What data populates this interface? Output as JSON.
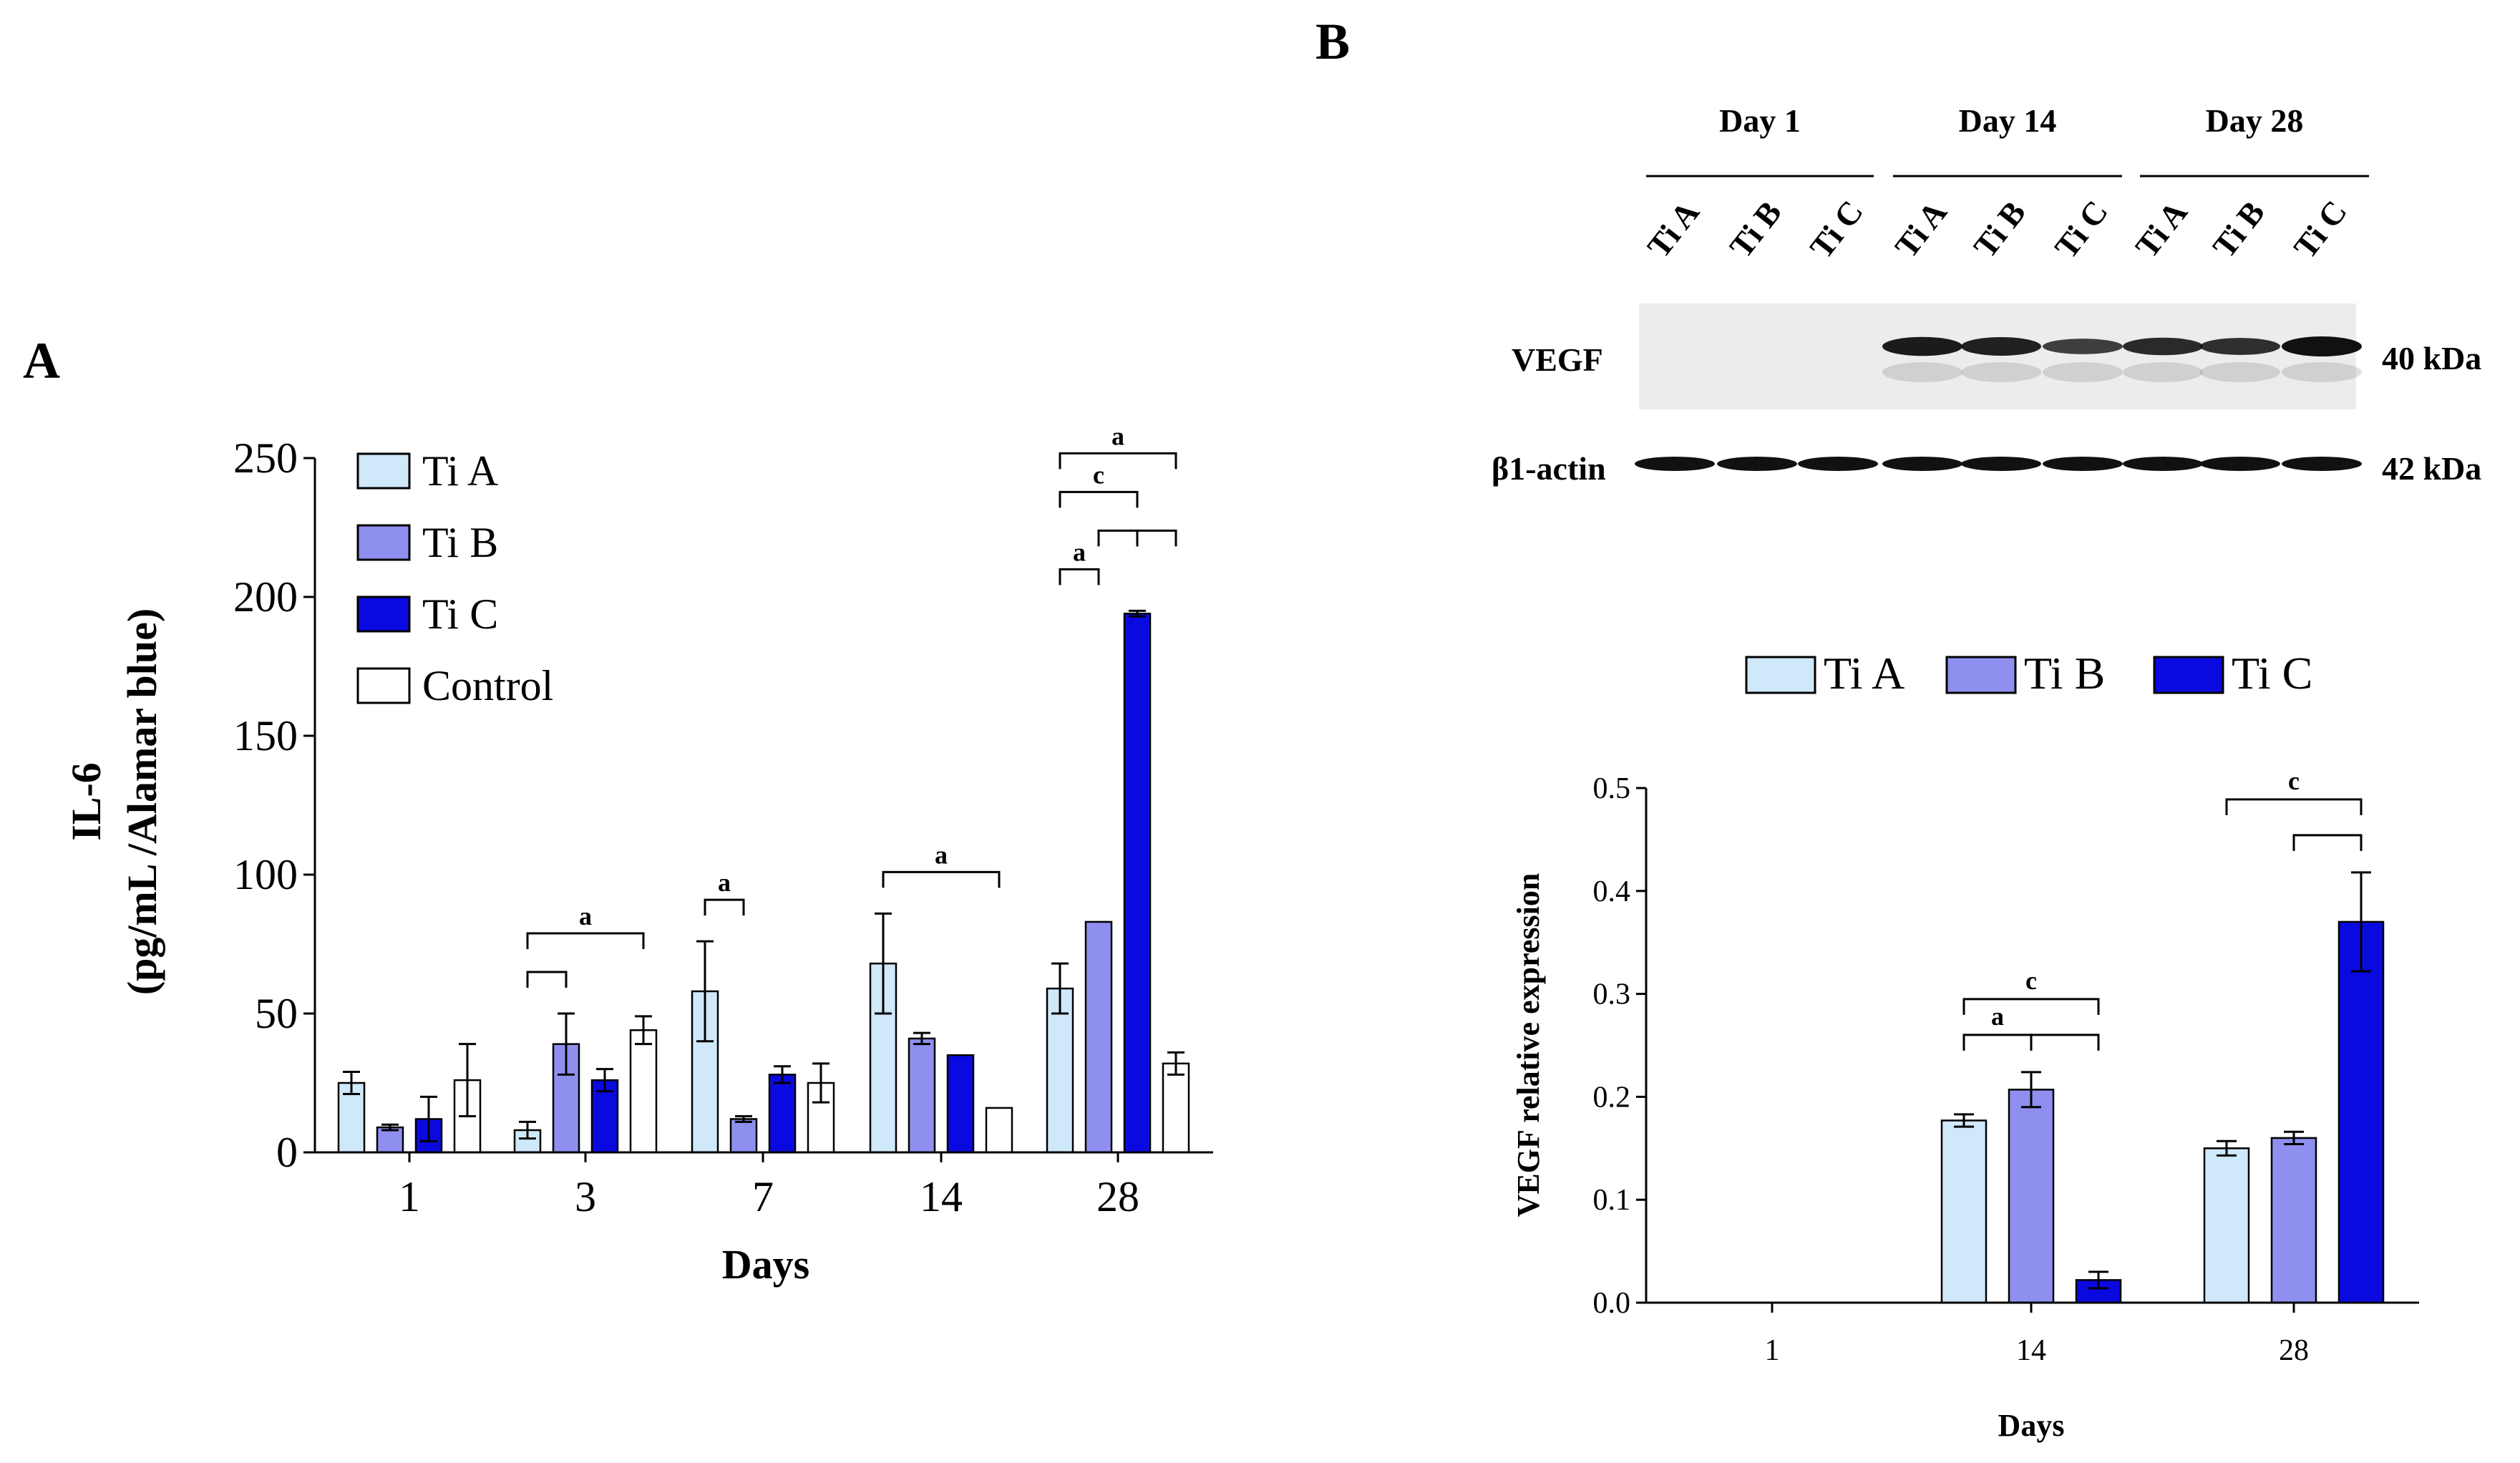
{
  "colors": {
    "ti_a": "#cfe8fa",
    "ti_b": "#8f8ff0",
    "ti_c": "#0a0ae0",
    "control": "#ffffff",
    "stroke": "#000000"
  },
  "panels": {
    "a_letter": "A",
    "b_letter": "B"
  },
  "blot": {
    "days": [
      "Day 1",
      "Day 14",
      "Day 28"
    ],
    "lanes": [
      "Ti A",
      "Ti B",
      "Ti C",
      "Ti A",
      "Ti B",
      "Ti C",
      "Ti A",
      "Ti B",
      "Ti C"
    ],
    "rows": [
      {
        "label": "VEGF",
        "size": "40 kDa"
      },
      {
        "label": "β1-actin",
        "size": "42 kDa"
      }
    ]
  },
  "chart_data": [
    {
      "type": "bar",
      "panel": "A",
      "title": "",
      "ylabel_line1": "IL-6",
      "ylabel_line2": "(pg/mL /Alamar blue)",
      "xlabel": "Days",
      "categories": [
        "1",
        "3",
        "7",
        "14",
        "28"
      ],
      "ylim": [
        0,
        250
      ],
      "yticks": [
        "0",
        "50",
        "100",
        "150",
        "200",
        "250"
      ],
      "legend_position": "top-left",
      "series": [
        {
          "name": "Ti A",
          "values": [
            25,
            8,
            58,
            68,
            59
          ],
          "errors": [
            4,
            3,
            18,
            18,
            9
          ]
        },
        {
          "name": "Ti B",
          "values": [
            9,
            39,
            12,
            41,
            83
          ],
          "errors": [
            1,
            11,
            1,
            2,
            0
          ]
        },
        {
          "name": "Ti C",
          "values": [
            12,
            26,
            28,
            35,
            194
          ],
          "errors": [
            8,
            4,
            3,
            0,
            1
          ]
        },
        {
          "name": "Control",
          "values": [
            26,
            44,
            25,
            16,
            32
          ],
          "errors": [
            13,
            5,
            7,
            0,
            4
          ]
        }
      ],
      "significance": [
        {
          "group": 1,
          "from": 0,
          "to": 1,
          "label": "",
          "level": 0
        },
        {
          "group": 1,
          "from": 0,
          "to": 3,
          "label": "a",
          "level": 1
        },
        {
          "group": 2,
          "from": 0,
          "to": 1,
          "label": "a",
          "level": 0
        },
        {
          "group": 3,
          "from": 0,
          "to": 3,
          "label": "a",
          "level": 0
        },
        {
          "group": 4,
          "from": 0,
          "to": 1,
          "label": "a",
          "level": 0
        },
        {
          "group": 4,
          "from": 1,
          "to": 2,
          "label": "",
          "level": 1
        },
        {
          "group": 4,
          "from": 2,
          "to": 3,
          "label": "",
          "level": 1
        },
        {
          "group": 4,
          "from": 0,
          "to": 2,
          "label": "c",
          "level": 2
        },
        {
          "group": 4,
          "from": 0,
          "to": 3,
          "label": "a",
          "level": 3
        }
      ]
    },
    {
      "type": "bar",
      "panel": "B",
      "title": "",
      "ylabel": "VEGF relative expression",
      "xlabel": "Days",
      "categories": [
        "1",
        "14",
        "28"
      ],
      "ylim": [
        0,
        0.5
      ],
      "yticks": [
        "0.0",
        "0.1",
        "0.2",
        "0.3",
        "0.4",
        "0.5"
      ],
      "legend_position": "top",
      "series": [
        {
          "name": "Ti A",
          "values": [
            0,
            0.177,
            0.15
          ],
          "errors": [
            0,
            0.006,
            0.007
          ]
        },
        {
          "name": "Ti B",
          "values": [
            0,
            0.207,
            0.16
          ],
          "errors": [
            0,
            0.017,
            0.006
          ]
        },
        {
          "name": "Ti C",
          "values": [
            0,
            0.022,
            0.37
          ],
          "errors": [
            0,
            0.008,
            0.048
          ]
        }
      ],
      "significance": [
        {
          "group": 1,
          "from": 0,
          "to": 1,
          "label": "a",
          "level": 0
        },
        {
          "group": 1,
          "from": 1,
          "to": 2,
          "label": "",
          "level": 0
        },
        {
          "group": 1,
          "from": 0,
          "to": 2,
          "label": "c",
          "level": 1
        },
        {
          "group": 2,
          "from": 1,
          "to": 2,
          "label": "",
          "level": 0
        },
        {
          "group": 2,
          "from": 0,
          "to": 2,
          "label": "c",
          "level": 1
        }
      ]
    }
  ]
}
